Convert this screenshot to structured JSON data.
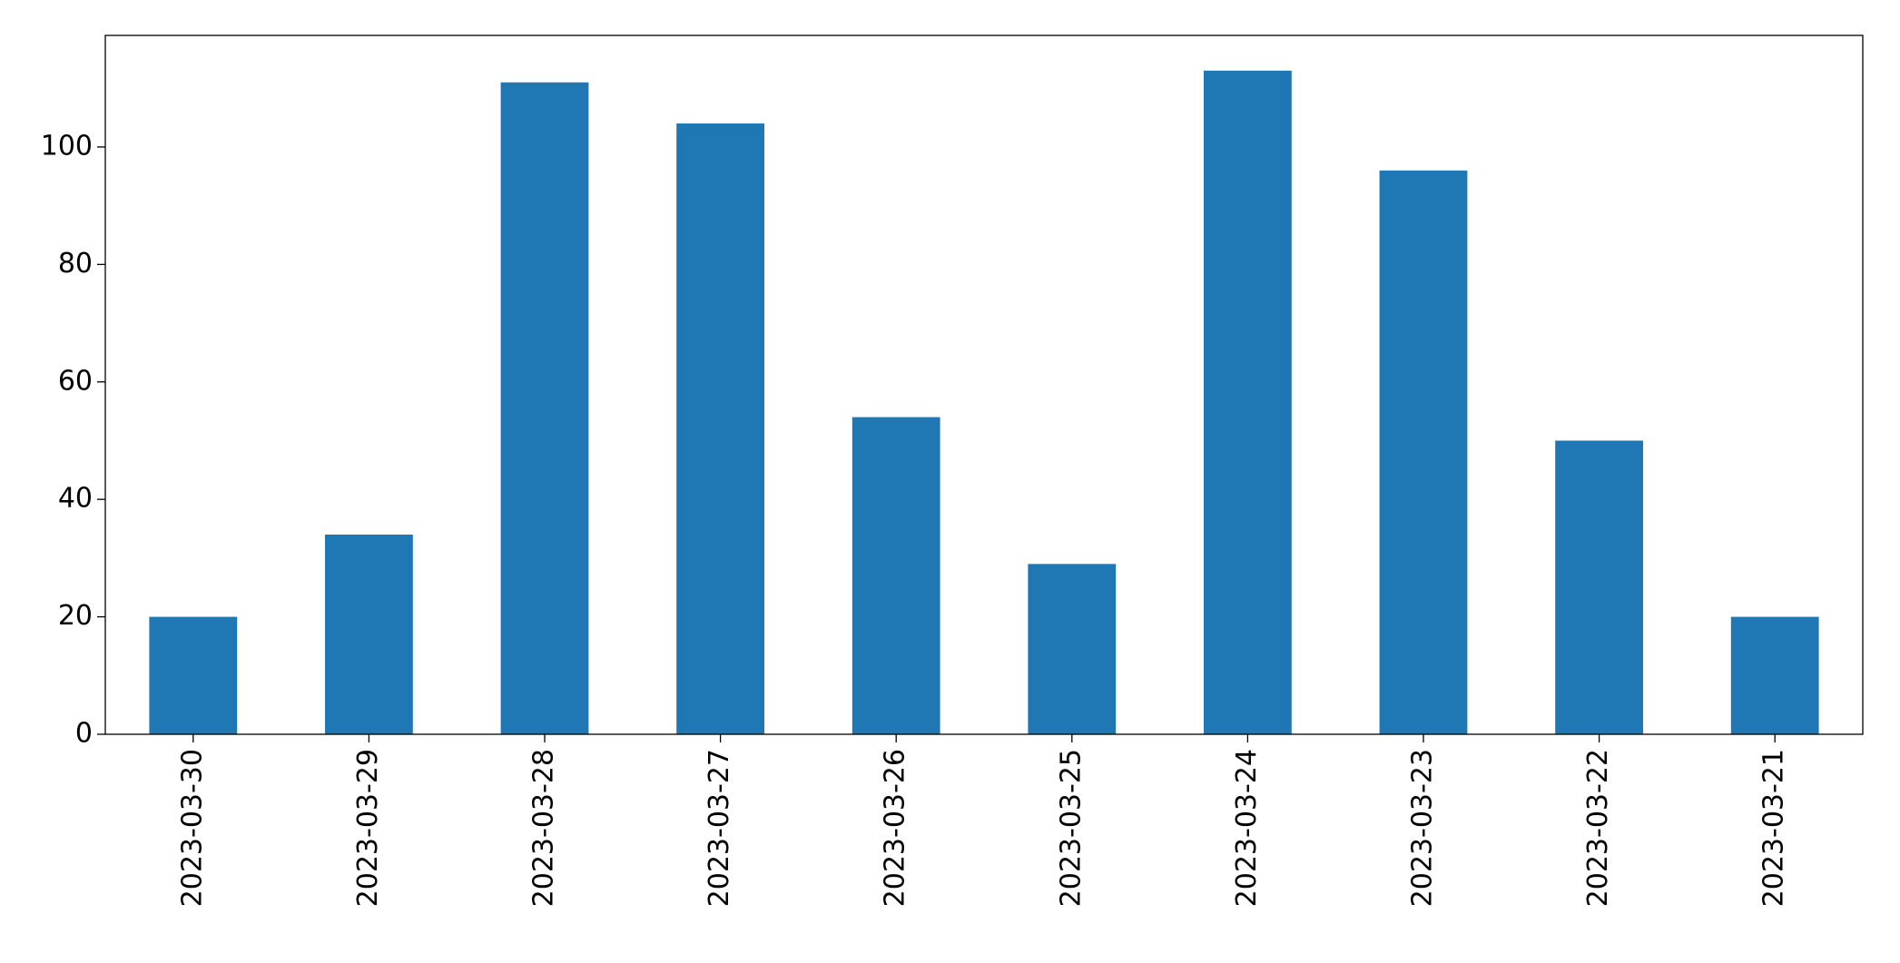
{
  "chart_data": {
    "type": "bar",
    "categories": [
      "2023-03-30",
      "2023-03-29",
      "2023-03-28",
      "2023-03-27",
      "2023-03-26",
      "2023-03-25",
      "2023-03-24",
      "2023-03-23",
      "2023-03-22",
      "2023-03-21"
    ],
    "values": [
      20,
      34,
      111,
      104,
      54,
      29,
      113,
      96,
      50,
      20
    ],
    "color": "#1f77b4",
    "ylim": [
      0,
      119
    ],
    "yticks": [
      0,
      20,
      40,
      60,
      80,
      100
    ],
    "grid": false
  }
}
